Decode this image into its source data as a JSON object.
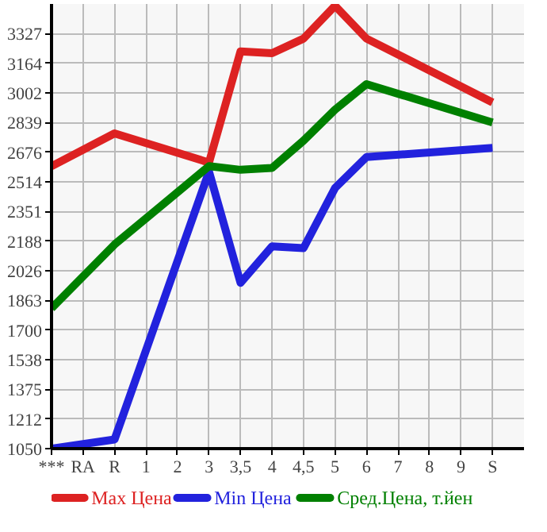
{
  "chart_data": {
    "type": "line",
    "categories": [
      "***",
      "RA",
      "R",
      "1",
      "2",
      "3",
      "3,5",
      "4",
      "4,5",
      "5",
      "6",
      "7",
      "8",
      "9",
      "S"
    ],
    "series": [
      {
        "name": "Max Цена",
        "color": "#dd2222",
        "values": [
          2600,
          null,
          2780,
          null,
          null,
          2620,
          3230,
          3220,
          3300,
          3480,
          3300,
          null,
          null,
          null,
          2950
        ]
      },
      {
        "name": "Min Цена",
        "color": "#2222dd",
        "values": [
          1050,
          null,
          1100,
          null,
          null,
          2570,
          1960,
          2160,
          2150,
          2480,
          2650,
          null,
          null,
          null,
          2700
        ]
      },
      {
        "name": "Сред.Цена, т.йен",
        "color": "#008000",
        "values": [
          1820,
          null,
          2170,
          null,
          null,
          2600,
          2580,
          2590,
          2740,
          2910,
          3050,
          null,
          null,
          null,
          2840
        ]
      }
    ],
    "ylim": [
      1050,
      3490
    ],
    "yticks": [
      1050,
      1212,
      1375,
      1538,
      1700,
      1863,
      2026,
      2188,
      2351,
      2514,
      2676,
      2839,
      3002,
      3164,
      3327
    ],
    "grid": true,
    "legend": "bottom",
    "marker": "none",
    "line_style": "solid"
  }
}
